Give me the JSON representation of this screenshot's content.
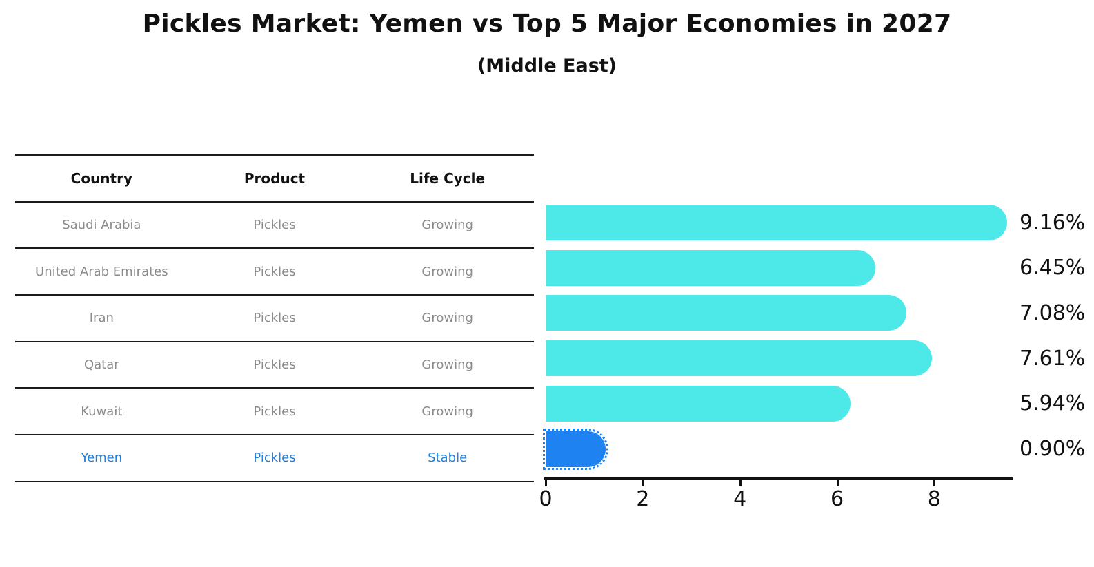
{
  "title": "Pickles Market: Yemen vs Top 5 Major Economies in 2027",
  "subtitle": "(Middle East)",
  "table": {
    "headers": [
      "Country",
      "Product",
      "Life Cycle"
    ],
    "rows": [
      {
        "country": "Saudi Arabia",
        "product": "Pickles",
        "life_cycle": "Growing",
        "highlighted": false
      },
      {
        "country": "United Arab Emirates",
        "product": "Pickles",
        "life_cycle": "Growing",
        "highlighted": false
      },
      {
        "country": "Iran",
        "product": "Pickles",
        "life_cycle": "Growing",
        "highlighted": false
      },
      {
        "country": "Qatar",
        "product": "Pickles",
        "life_cycle": "Growing",
        "highlighted": false
      },
      {
        "country": "Kuwait",
        "product": "Pickles",
        "life_cycle": "Growing",
        "highlighted": false
      },
      {
        "country": "Yemen",
        "product": "Pickles",
        "life_cycle": "Stable",
        "highlighted": true
      }
    ]
  },
  "chart_data": {
    "type": "bar",
    "orientation": "horizontal",
    "title": "Pickles Market: Yemen vs Top 5 Major Economies in 2027 (Middle East)",
    "categories": [
      "Saudi Arabia",
      "United Arab Emirates",
      "Iran",
      "Qatar",
      "Kuwait",
      "Yemen"
    ],
    "values": [
      9.16,
      6.45,
      7.08,
      7.61,
      5.94,
      0.9
    ],
    "value_labels": [
      "9.16%",
      "6.45%",
      "7.08%",
      "7.61%",
      "5.94%",
      "0.90%"
    ],
    "unit": "percent CAGR",
    "x_ticks": [
      "0",
      "2",
      "4",
      "6",
      "8"
    ],
    "x_tick_values": [
      0,
      2,
      4,
      6,
      8
    ],
    "xlim": [
      0,
      9.6
    ],
    "grid": false,
    "legend": false,
    "bar_color": "#4de8e8",
    "highlight_color": "#1e82f0",
    "highlight_index": 5,
    "text_colors": {
      "header": "#111111",
      "row": "#8b8b8b",
      "highlight_row": "#2080dc"
    }
  }
}
